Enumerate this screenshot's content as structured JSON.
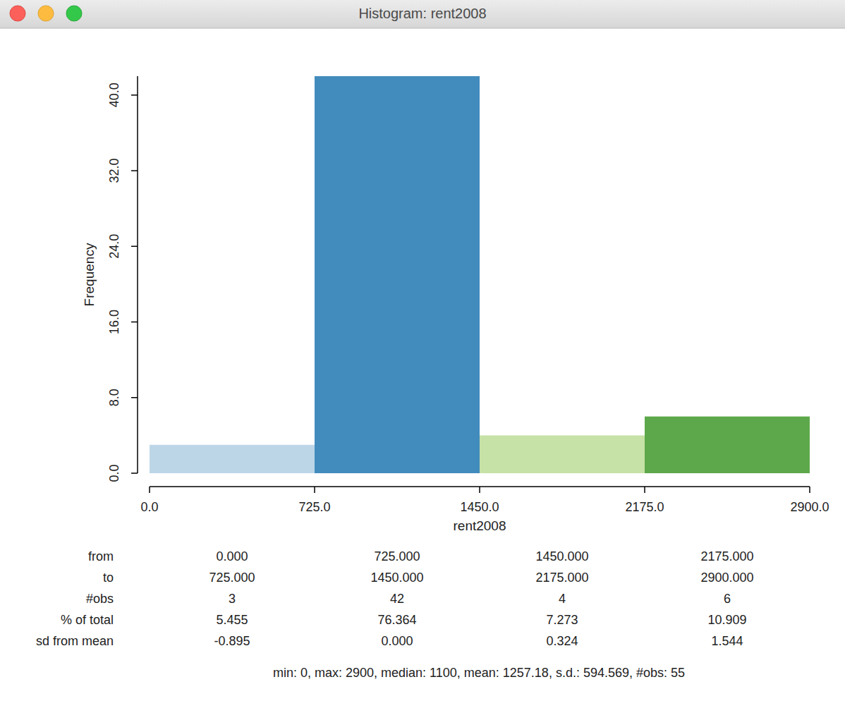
{
  "window_title": "Histogram: rent2008",
  "chart_data": {
    "type": "histogram",
    "x_label": "rent2008",
    "y_label": "Frequency",
    "bins": [
      0,
      725,
      1450,
      2175,
      2900
    ],
    "values": [
      3,
      42,
      4,
      6
    ],
    "colors": [
      "#bcd6e8",
      "#428bbd",
      "#c6e2a6",
      "#5da84a"
    ],
    "xlim": [
      0,
      2900
    ],
    "xticks": [
      {
        "value": 0,
        "label": "0.0"
      },
      {
        "value": 725,
        "label": "725.0"
      },
      {
        "value": 1450,
        "label": "1450.0"
      },
      {
        "value": 2175,
        "label": "2175.0"
      },
      {
        "value": 2900,
        "label": "2900.0"
      }
    ],
    "ylim": [
      0,
      42
    ],
    "yticks": [
      {
        "value": 0,
        "label": "0.0"
      },
      {
        "value": 8,
        "label": "8.0"
      },
      {
        "value": 16,
        "label": "16.0"
      },
      {
        "value": 24,
        "label": "24.0"
      },
      {
        "value": 32,
        "label": "32.0"
      },
      {
        "value": 40,
        "label": "40.0"
      }
    ],
    "grid": false
  },
  "table": {
    "row_labels": [
      "from",
      "to",
      "#obs",
      "% of total",
      "sd from mean"
    ],
    "rows": [
      [
        "0.000",
        "725.000",
        "1450.000",
        "2175.000"
      ],
      [
        "725.000",
        "1450.000",
        "2175.000",
        "2900.000"
      ],
      [
        "3",
        "42",
        "4",
        "6"
      ],
      [
        "5.455",
        "76.364",
        "7.273",
        "10.909"
      ],
      [
        "-0.895",
        "0.000",
        "0.324",
        "1.544"
      ]
    ]
  },
  "summary": "min: 0, max: 2900, median: 1100, mean: 1257.18, s.d.: 594.569, #obs: 55"
}
